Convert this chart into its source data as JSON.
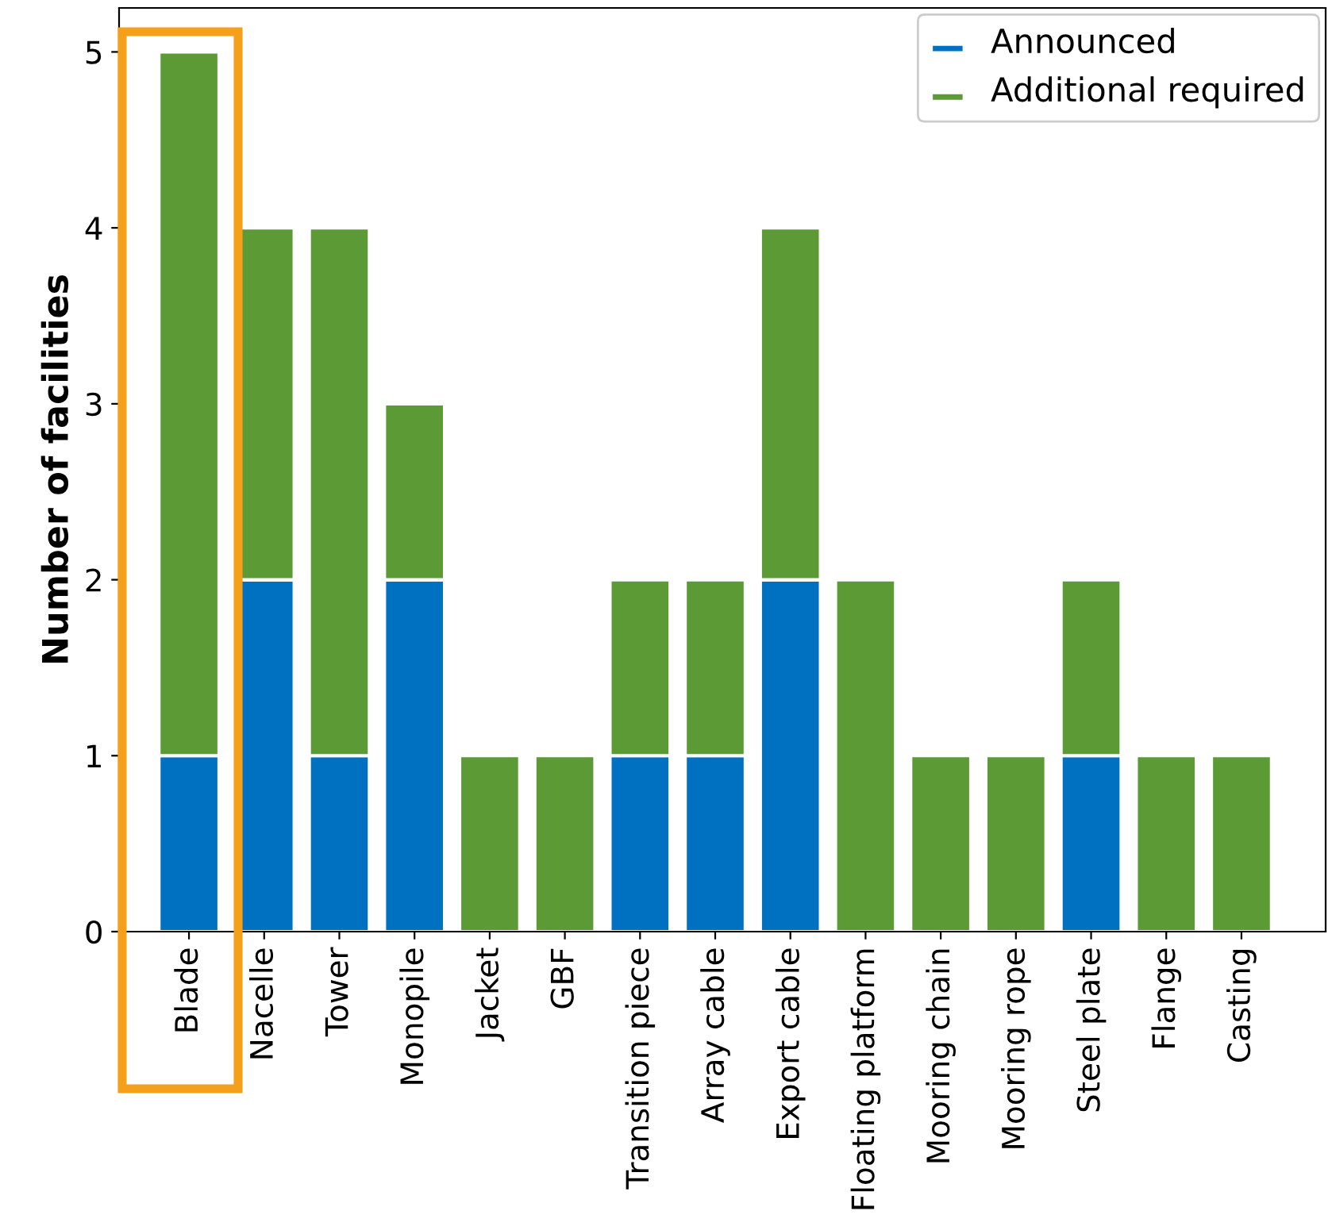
{
  "chart_data": {
    "type": "bar",
    "stacked": true,
    "ylabel": "Number of facilities",
    "categories": [
      "Blade",
      "Nacelle",
      "Tower",
      "Monopile",
      "Jacket",
      "GBF",
      "Transition piece",
      "Array cable",
      "Export cable",
      "Floating platform",
      "Mooring chain",
      "Mooring rope",
      "Steel plate",
      "Flange",
      "Casting"
    ],
    "series": [
      {
        "name": "Announced",
        "color": "#0070c0",
        "values": [
          1,
          2,
          1,
          2,
          0,
          0,
          1,
          1,
          2,
          0,
          0,
          0,
          1,
          0,
          0
        ]
      },
      {
        "name": "Additional required",
        "color": "#5b9a35",
        "values": [
          4,
          2,
          3,
          1,
          1,
          1,
          1,
          1,
          2,
          2,
          1,
          1,
          1,
          1,
          1
        ]
      }
    ],
    "ylim": [
      0,
      5.25
    ],
    "yticks": [
      0,
      1,
      2,
      3,
      4,
      5
    ],
    "legend": "top right"
  }
}
